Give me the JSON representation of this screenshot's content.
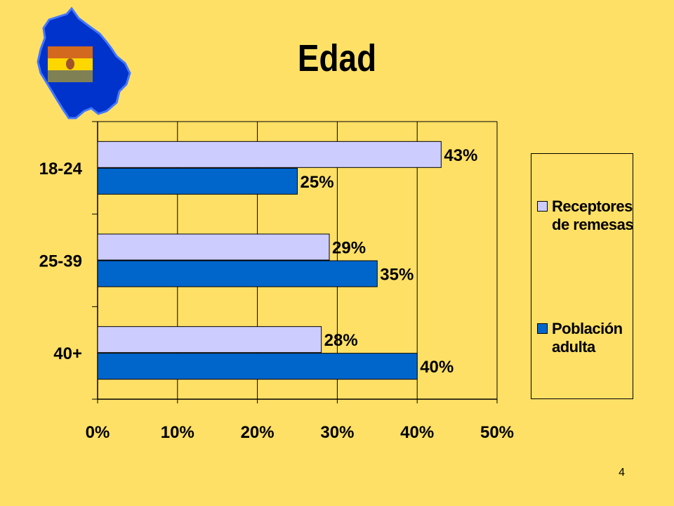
{
  "title": "Edad",
  "page_number": "4",
  "colors": {
    "background": "#FFE066",
    "series_receptores": "#CCCCFF",
    "series_poblacion": "#0066CC",
    "map_fill": "#0033CC",
    "flag_red": "#D2691E",
    "flag_yellow": "#FFD700",
    "flag_green": "#808055"
  },
  "icons": {
    "map": "bolivia-map-icon",
    "flag": "bolivia-flag-icon"
  },
  "chart_data": {
    "type": "bar",
    "orientation": "horizontal",
    "categories": [
      "18-24",
      "25-39",
      "40+"
    ],
    "series": [
      {
        "name": "Receptores de remesas",
        "values": [
          43,
          29,
          28
        ],
        "labels": [
          "43%",
          "29%",
          "28%"
        ],
        "color": "#CCCCFF"
      },
      {
        "name": "Población adulta",
        "values": [
          25,
          35,
          40
        ],
        "labels": [
          "25%",
          "35%",
          "40%"
        ],
        "color": "#0066CC"
      }
    ],
    "x_ticks": [
      "0%",
      "10%",
      "20%",
      "30%",
      "40%",
      "50%"
    ],
    "xlim": [
      0,
      50
    ],
    "grid": true,
    "legend_position": "right"
  },
  "legend": {
    "items": [
      {
        "label": "Receptores de remesas",
        "color": "#CCCCFF"
      },
      {
        "label": "Población adulta",
        "color": "#0066CC"
      }
    ]
  }
}
